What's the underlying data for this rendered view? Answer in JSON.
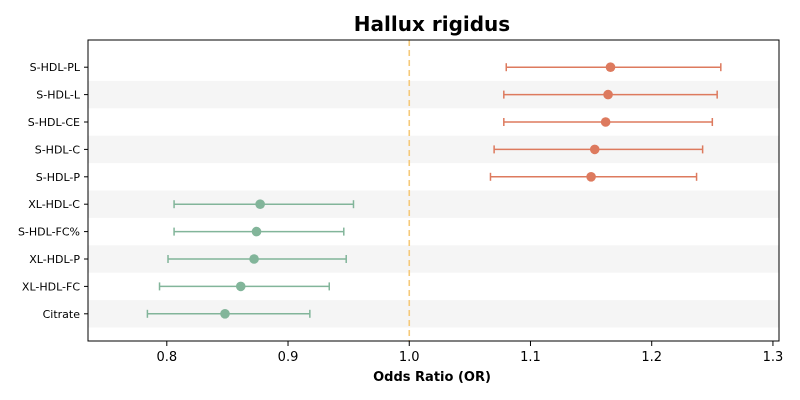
{
  "chart_data": {
    "type": "forest",
    "title": "Hallux rigidus",
    "xlabel": "Odds Ratio (OR)",
    "xlim": [
      0.735,
      1.305
    ],
    "xticks": [
      "0.8",
      "0.9",
      "1.0",
      "1.1",
      "1.2",
      "1.3"
    ],
    "reference_line": 1.0,
    "reference_color": "#f5c97a",
    "colors": {
      "positive": "#dd7a5e",
      "negative": "#82b59a",
      "band": "#f5f5f5"
    },
    "rows": [
      {
        "label": "S-HDL-PL",
        "or": 1.166,
        "lo": 1.08,
        "hi": 1.257
      },
      {
        "label": "S-HDL-L",
        "or": 1.164,
        "lo": 1.078,
        "hi": 1.254
      },
      {
        "label": "S-HDL-CE",
        "or": 1.162,
        "lo": 1.078,
        "hi": 1.25
      },
      {
        "label": "S-HDL-C",
        "or": 1.153,
        "lo": 1.07,
        "hi": 1.242
      },
      {
        "label": "S-HDL-P",
        "or": 1.15,
        "lo": 1.067,
        "hi": 1.237
      },
      {
        "label": "XL-HDL-C",
        "or": 0.877,
        "lo": 0.806,
        "hi": 0.954
      },
      {
        "label": "S-HDL-FC%",
        "or": 0.874,
        "lo": 0.806,
        "hi": 0.946
      },
      {
        "label": "XL-HDL-P",
        "or": 0.872,
        "lo": 0.801,
        "hi": 0.948
      },
      {
        "label": "XL-HDL-FC",
        "or": 0.861,
        "lo": 0.794,
        "hi": 0.934
      },
      {
        "label": "Citrate",
        "or": 0.848,
        "lo": 0.784,
        "hi": 0.918
      }
    ]
  }
}
